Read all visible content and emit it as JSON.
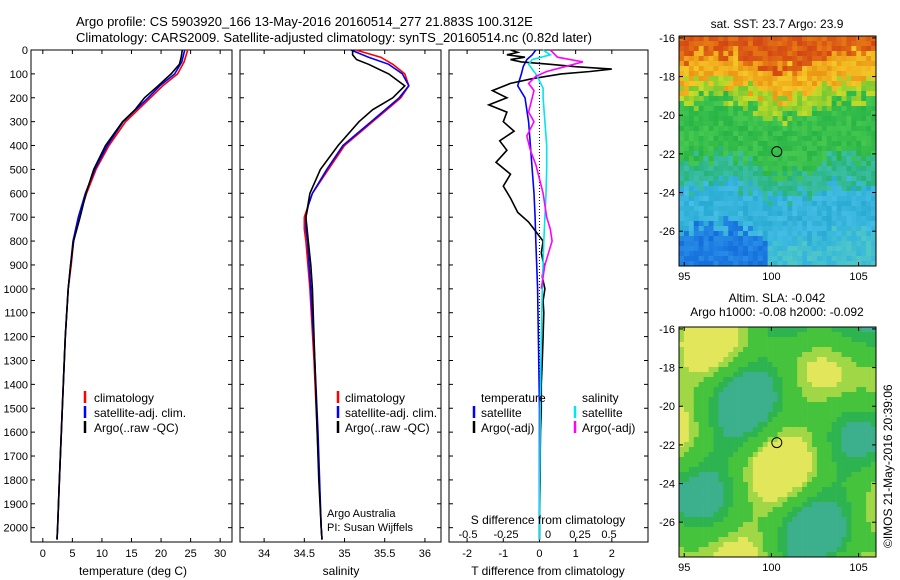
{
  "header": {
    "line1": "Argo profile: CS 5903920_166 13-May-2016 20160514_277 21.883S 100.312E",
    "line2": "Climatology: CARS2009. Satellite-adjusted climatology: synTS_20160514.nc (0.82d later)"
  },
  "credit": "©IMOS 21-May-2016 20:39:06",
  "chart_data": [
    {
      "type": "line",
      "xlabel": "temperature (deg C)",
      "xlim": [
        -2,
        32
      ],
      "ylim": [
        2060,
        0
      ],
      "x_ticks": [
        0,
        5,
        10,
        15,
        20,
        25,
        30
      ],
      "y_ticks": [
        0,
        100,
        200,
        300,
        400,
        500,
        600,
        700,
        800,
        900,
        1000,
        1100,
        1200,
        1300,
        1400,
        1500,
        1600,
        1700,
        1800,
        1900,
        2000
      ],
      "legend": [
        "climatology",
        "satellite-adj. clim.",
        "Argo(..raw -QC)"
      ],
      "legend_placement": "lower-center",
      "series": [
        {
          "name": "climatology",
          "color": "#ff0000",
          "depth": [
            0,
            50,
            100,
            150,
            200,
            300,
            400,
            500,
            600,
            700,
            800,
            900,
            1000,
            1200,
            1500,
            1800,
            2000,
            2050
          ],
          "values": [
            24.5,
            23.9,
            22.8,
            20.3,
            18.2,
            14.0,
            11.2,
            9.0,
            7.4,
            6.1,
            5.2,
            4.8,
            4.3,
            3.8,
            3.3,
            2.8,
            2.5,
            2.4
          ]
        },
        {
          "name": "satellite-adj. clim.",
          "color": "#0000ff",
          "depth": [
            0,
            50,
            100,
            150,
            200,
            300,
            400,
            500,
            600,
            700,
            800,
            900,
            1000,
            1200,
            1500,
            1800,
            2000,
            2050
          ],
          "values": [
            24.0,
            23.5,
            22.3,
            19.8,
            17.8,
            13.6,
            10.9,
            8.8,
            7.2,
            6.0,
            5.1,
            4.7,
            4.3,
            3.8,
            3.3,
            2.8,
            2.5,
            2.4
          ]
        },
        {
          "name": "Argo(..raw -QC)",
          "color": "#000000",
          "depth": [
            0,
            30,
            60,
            100,
            150,
            200,
            250,
            300,
            400,
            500,
            600,
            700,
            800,
            900,
            1000,
            1200,
            1500,
            1800,
            2000,
            2050
          ],
          "values": [
            23.6,
            23.4,
            23.1,
            21.7,
            19.5,
            17.2,
            15.6,
            13.5,
            10.6,
            8.6,
            7.3,
            6.3,
            5.2,
            4.7,
            4.3,
            3.8,
            3.3,
            2.8,
            2.5,
            2.4
          ]
        }
      ]
    },
    {
      "type": "line",
      "xlabel": "salinity",
      "xlim": [
        33.7,
        36.2
      ],
      "ylim": [
        2060,
        0
      ],
      "x_ticks": [
        34,
        34.5,
        35,
        35.5,
        36
      ],
      "x_tick_labels": [
        "34",
        "34.5",
        "35",
        "35.5",
        "36"
      ],
      "legend": [
        "climatology",
        "satellite-adj. clim.",
        "Argo(..raw -QC)"
      ],
      "legend_placement": "lower-center",
      "annotation": [
        "Argo Australia",
        "PI: Susan Wijffels"
      ],
      "series": [
        {
          "name": "climatology",
          "color": "#ff0000",
          "depth": [
            0,
            30,
            60,
            100,
            150,
            200,
            300,
            400,
            500,
            600,
            650,
            700,
            750,
            800,
            1000,
            1300,
            1600,
            2000,
            2050
          ],
          "values": [
            35.14,
            35.45,
            35.6,
            35.75,
            35.8,
            35.7,
            35.35,
            35.0,
            34.8,
            34.6,
            34.55,
            34.5,
            34.5,
            34.52,
            34.57,
            34.62,
            34.66,
            34.71,
            34.72
          ]
        },
        {
          "name": "satellite-adj. clim.",
          "color": "#0000ff",
          "depth": [
            0,
            30,
            60,
            100,
            150,
            200,
            300,
            400,
            500,
            600,
            650,
            700,
            750,
            800,
            1000,
            1300,
            1600,
            2000,
            2050
          ],
          "values": [
            35.08,
            35.3,
            35.55,
            35.72,
            35.8,
            35.68,
            35.33,
            34.98,
            34.78,
            34.6,
            34.55,
            34.52,
            34.52,
            34.54,
            34.58,
            34.63,
            34.67,
            34.71,
            34.72
          ]
        },
        {
          "name": "Argo(..raw -QC)",
          "color": "#000000",
          "depth": [
            0,
            20,
            40,
            60,
            100,
            150,
            200,
            250,
            300,
            400,
            500,
            600,
            700,
            800,
            900,
            1000,
            1200,
            1500,
            1800,
            2000,
            2050
          ],
          "values": [
            35.1,
            35.1,
            35.15,
            35.3,
            35.55,
            35.75,
            35.6,
            35.35,
            35.18,
            34.92,
            34.7,
            34.57,
            34.52,
            34.55,
            34.58,
            34.6,
            34.62,
            34.65,
            34.68,
            34.71,
            34.72
          ]
        }
      ]
    },
    {
      "type": "line",
      "xlabel": "T difference from climatology",
      "xlabel_top": "S difference from climatology",
      "xlim": [
        -2.5,
        3
      ],
      "ylim": [
        2060,
        0
      ],
      "x_ticks": [
        -2,
        -1,
        0,
        1,
        2
      ],
      "x_ticks_top": [
        "-0.5",
        "-0.25",
        "0",
        "0.25",
        "0.5"
      ],
      "legend": [
        "temperature",
        "satellite",
        "Argo(-adj)",
        "salinity",
        "satellite",
        "Argo(-adj)"
      ],
      "legend_placement": "lower-center",
      "series": [
        {
          "name": "satellite",
          "quantity": "temperature",
          "color": "#0000ff",
          "depth": [
            0,
            20,
            40,
            70,
            100,
            150,
            200,
            250,
            300,
            400,
            500,
            600,
            700,
            800,
            1000,
            1500,
            2000,
            2050
          ],
          "values": [
            -0.1,
            -0.2,
            -0.35,
            -0.45,
            -0.5,
            -0.6,
            -0.4,
            -0.35,
            -0.3,
            -0.25,
            -0.2,
            -0.15,
            -0.12,
            -0.1,
            -0.05,
            0,
            0,
            0
          ]
        },
        {
          "name": "Argo(-adj)",
          "quantity": "temperature",
          "color": "#000000",
          "depth": [
            0,
            10,
            20,
            30,
            40,
            50,
            60,
            70,
            80,
            90,
            100,
            120,
            140,
            170,
            200,
            230,
            260,
            300,
            340,
            380,
            420,
            470,
            520,
            570,
            620,
            680,
            720,
            760,
            800,
            850,
            900,
            950,
            1000,
            1050,
            1100,
            1200,
            1300,
            1400,
            1500,
            1600,
            1700,
            1800,
            1900,
            2000,
            2050
          ],
          "values": [
            -0.8,
            -0.6,
            -0.9,
            -0.4,
            -0.8,
            -0.5,
            0.3,
            1.0,
            2.0,
            1.4,
            0.6,
            -0.2,
            -0.8,
            -1.3,
            -0.9,
            -1.4,
            -0.9,
            -1.0,
            -0.7,
            -1.1,
            -0.9,
            -1.2,
            -0.8,
            -1.0,
            -0.8,
            -0.6,
            -0.3,
            -0.1,
            0.1,
            0.05,
            0.12,
            0.08,
            0.15,
            0.1,
            0.12,
            0.1,
            0.08,
            0.05,
            0.05,
            0.03,
            0.02,
            0.02,
            0.01,
            0,
            0
          ]
        },
        {
          "name": "satellite",
          "quantity": "salinity",
          "color": "#00e5ee",
          "depth": [
            0,
            20,
            40,
            60,
            80,
            100,
            130,
            160,
            200,
            300,
            400,
            500,
            600,
            700,
            800,
            900,
            1000,
            1200,
            1500,
            2000,
            2050
          ],
          "values": [
            0.1,
            0.3,
            -0.2,
            -0.3,
            -0.2,
            -0.1,
            0.0,
            0.1,
            0.1,
            0.15,
            0.2,
            0.2,
            0.18,
            0.15,
            0.12,
            0.1,
            0.08,
            0.05,
            0.02,
            0,
            0
          ]
        },
        {
          "name": "Argo(-adj)",
          "quantity": "salinity",
          "color": "#ff00ff",
          "depth": [
            0,
            30,
            50,
            70,
            90,
            110,
            140,
            170,
            200,
            260,
            300,
            360,
            420,
            480,
            540,
            600,
            650,
            700,
            750,
            800,
            850,
            900,
            950,
            1000
          ],
          "values": [
            0.3,
            0.5,
            1.2,
            0.7,
            0.2,
            -0.1,
            -0.3,
            -0.15,
            -0.2,
            -0.3,
            -0.15,
            -0.35,
            -0.25,
            -0.1,
            0.0,
            0.1,
            0.15,
            0.2,
            0.3,
            0.35,
            0.25,
            0.15,
            0.1,
            0.05
          ]
        }
      ]
    },
    {
      "type": "heatmap",
      "title": "sat. SST: 23.7 Argo: 23.9",
      "xlim": [
        94.7,
        106
      ],
      "ylim": [
        -27.8,
        -15.9
      ],
      "x_ticks": [
        95,
        100,
        105
      ],
      "y_ticks": [
        -16,
        -18,
        -20,
        -22,
        -24,
        -26
      ],
      "marker": {
        "lon": 100.312,
        "lat": -21.883
      }
    },
    {
      "type": "heatmap",
      "title": "Altim. SLA: -0.042",
      "subtitle": "Argo h1000: -0.08 h2000: -0.092",
      "xlim": [
        94.7,
        106
      ],
      "ylim": [
        -27.8,
        -15.9
      ],
      "x_ticks": [
        95,
        100,
        105
      ],
      "y_ticks": [
        -16,
        -18,
        -20,
        -22,
        -24,
        -26
      ],
      "marker": {
        "lon": 100.312,
        "lat": -21.883
      }
    }
  ]
}
